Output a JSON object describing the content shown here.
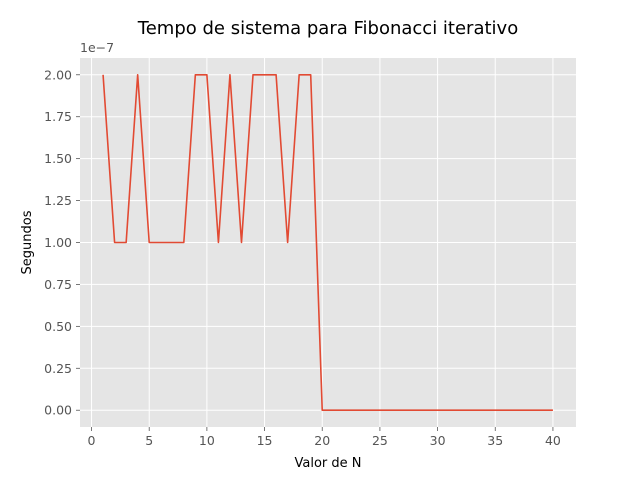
{
  "chart_data": {
    "type": "line",
    "title": "Tempo de sistema para Fibonacci iterativo",
    "xlabel": "Valor de N",
    "ylabel": "Segundos",
    "offset_text": "1e−7",
    "grid": true,
    "xlim": [
      -1,
      42
    ],
    "ylim": [
      -0.1,
      2.1
    ],
    "xticks": [
      0,
      5,
      10,
      15,
      20,
      25,
      30,
      35,
      40
    ],
    "xtick_labels": [
      "0",
      "5",
      "10",
      "15",
      "20",
      "25",
      "30",
      "35",
      "40"
    ],
    "yticks": [
      0,
      0.25,
      0.5,
      0.75,
      1.0,
      1.25,
      1.5,
      1.75,
      2.0
    ],
    "ytick_labels": [
      "0.00",
      "0.25",
      "0.50",
      "0.75",
      "1.00",
      "1.25",
      "1.50",
      "1.75",
      "2.00"
    ],
    "series": [
      {
        "color": "#E24A33",
        "x": [
          1,
          2,
          3,
          4,
          5,
          6,
          7,
          8,
          9,
          10,
          11,
          12,
          13,
          14,
          15,
          16,
          17,
          18,
          19,
          20,
          21,
          22,
          23,
          24,
          25,
          26,
          27,
          28,
          29,
          30,
          31,
          32,
          33,
          34,
          35,
          36,
          37,
          38,
          39,
          40
        ],
        "y": [
          2,
          1,
          1,
          2,
          1,
          1,
          1,
          1,
          2,
          2,
          1,
          2,
          1,
          2,
          2,
          2,
          1,
          2,
          2,
          0,
          0,
          0,
          0,
          0,
          0,
          0,
          0,
          0,
          0,
          0,
          0,
          0,
          0,
          0,
          0,
          0,
          0,
          0,
          0,
          0
        ]
      }
    ]
  },
  "colors": {
    "plot_background": "#E5E5E5",
    "grid": "#FFFFFF",
    "line": "#E24A33"
  }
}
